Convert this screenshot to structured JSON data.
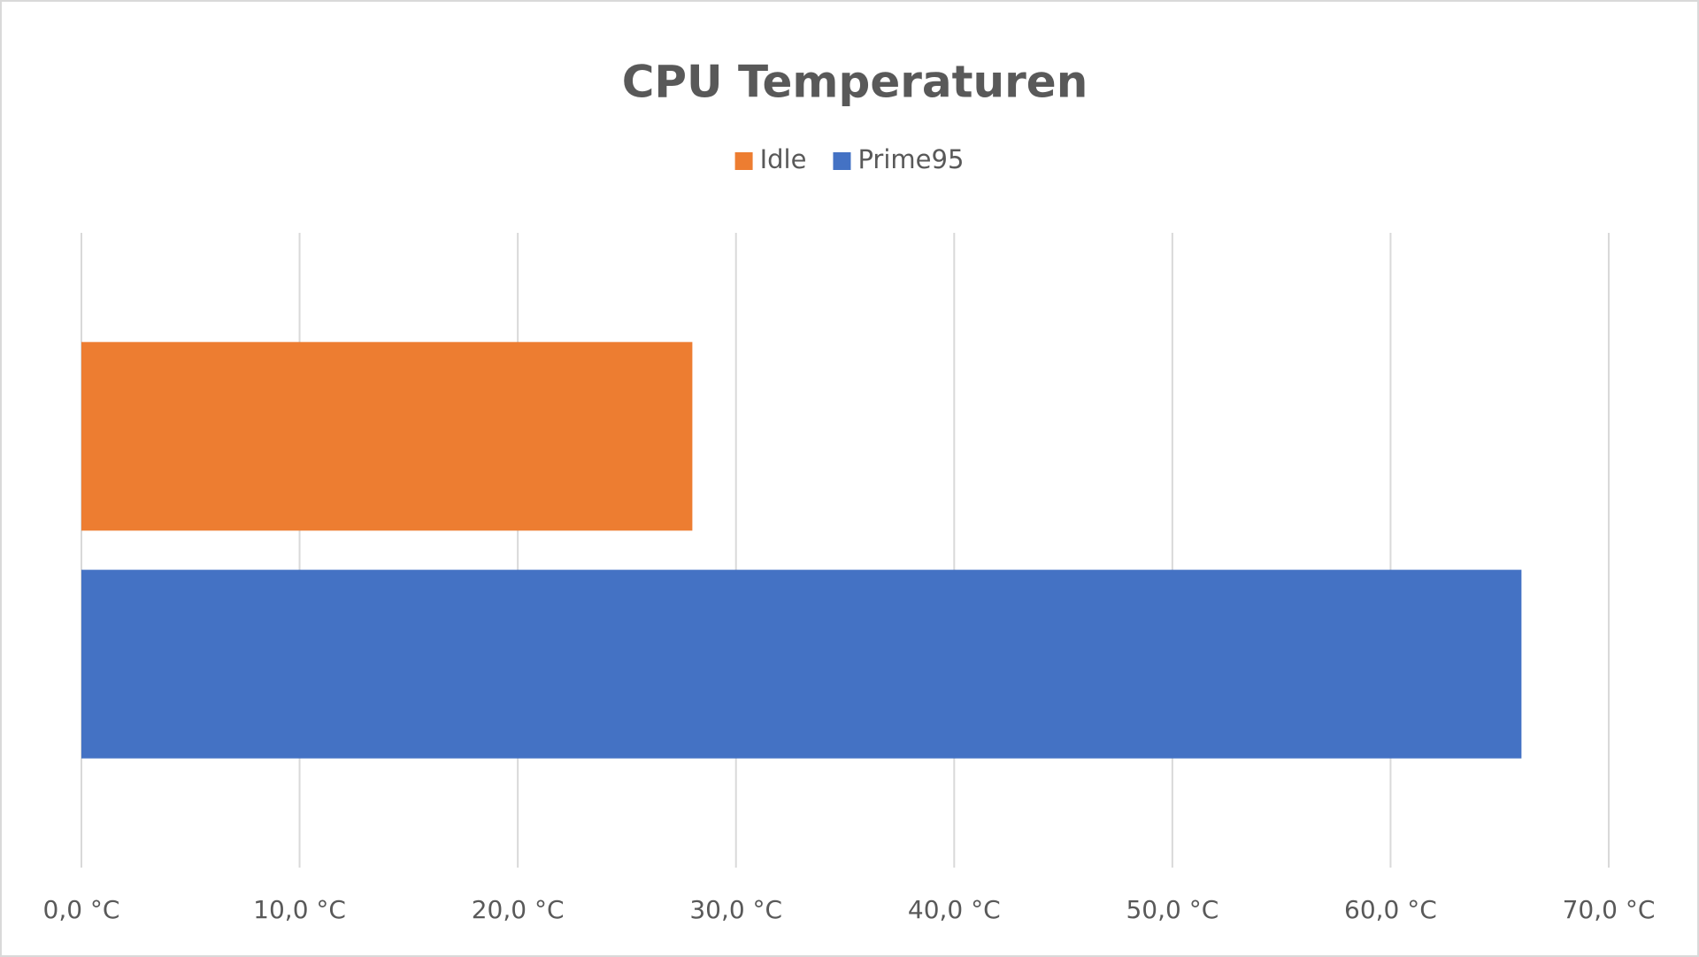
{
  "chart_data": {
    "type": "bar",
    "orientation": "horizontal",
    "title": "CPU Temperaturen",
    "categories": [
      null
    ],
    "series": [
      {
        "name": "Idle",
        "color": "#ed7d31",
        "values": [
          28.0
        ]
      },
      {
        "name": "Prime95",
        "color": "#4472c4",
        "values": [
          66.0
        ]
      }
    ],
    "xlim": [
      0,
      70
    ],
    "xticks": [
      {
        "value": 0,
        "label": "0,0 °C"
      },
      {
        "value": 10,
        "label": "10,0 °C"
      },
      {
        "value": 20,
        "label": "20,0 °C"
      },
      {
        "value": 30,
        "label": "30,0 °C"
      },
      {
        "value": 40,
        "label": "40,0 °C"
      },
      {
        "value": 50,
        "label": "50,0 °C"
      },
      {
        "value": 60,
        "label": "60,0 °C"
      },
      {
        "value": 70,
        "label": "70,0 °C"
      }
    ],
    "grid": true,
    "legend": "top"
  }
}
